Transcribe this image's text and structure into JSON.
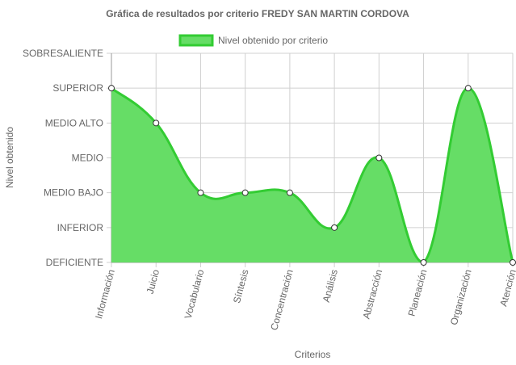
{
  "chart_data": {
    "type": "area",
    "title": "Gráfica de resultados por criterio FREDY SAN MARTIN CORDOVA",
    "xlabel": "Criterios",
    "ylabel": "Nivel obtenido",
    "y_levels": [
      "DEFICIENTE",
      "INFERIOR",
      "MEDIO BAJO",
      "MEDIO",
      "MEDIO ALTO",
      "SUPERIOR",
      "SOBRESALIENTE"
    ],
    "ylim": [
      0,
      6
    ],
    "categories": [
      "Información",
      "Juicio",
      "Vocabulario",
      "Síntesis",
      "Concentración",
      "Análisis",
      "Abstracción",
      "Planeación",
      "Organización",
      "Atención"
    ],
    "series": [
      {
        "name": "Nivel obtenido por criterio",
        "values": [
          5,
          4,
          2,
          2,
          2,
          1,
          3,
          0,
          5,
          0
        ]
      }
    ],
    "grid": true,
    "legend": "top",
    "colors": {
      "fill": "#66dd66",
      "line": "#33cc33",
      "point_fill": "#ffffff",
      "point_stroke": "#333333",
      "grid": "#d0d0d0",
      "axis": "#999999"
    }
  }
}
